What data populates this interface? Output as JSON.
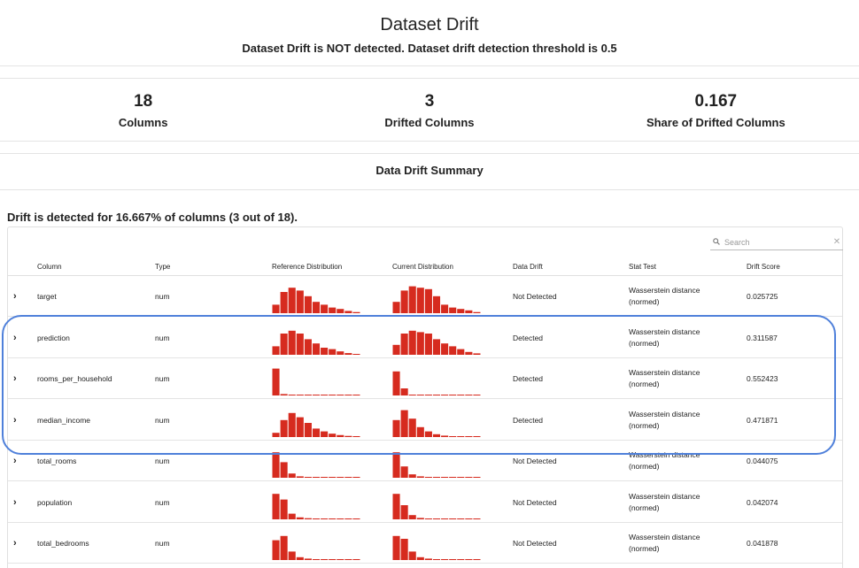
{
  "title": {
    "heading": "Dataset Drift",
    "subtitle": "Dataset Drift is NOT detected. Dataset drift detection threshold is 0.5"
  },
  "counters": [
    {
      "value": "18",
      "label": "Columns"
    },
    {
      "value": "3",
      "label": "Drifted Columns"
    },
    {
      "value": "0.167",
      "label": "Share of Drifted Columns"
    }
  ],
  "summary": {
    "heading": "Data Drift Summary"
  },
  "drift_text": "Drift is detected for 16.667% of columns (3 out of 18).",
  "search": {
    "placeholder": "Search",
    "icon": "search-icon"
  },
  "table": {
    "headers": [
      "Column",
      "Type",
      "Reference Distribution",
      "Current Distribution",
      "Data Drift",
      "Stat Test",
      "Drift Score"
    ],
    "bar_color": "#d62b1f",
    "rows": [
      {
        "column": "target",
        "type": "num",
        "drift": "Not Detected",
        "stat_line1": "Wasserstein distance",
        "stat_line2": "(normed)",
        "score": "0.025725",
        "ref": [
          0.3,
          0.75,
          0.9,
          0.8,
          0.6,
          0.4,
          0.3,
          0.2,
          0.15,
          0.08,
          0.04
        ],
        "cur": [
          0.4,
          0.8,
          0.95,
          0.9,
          0.85,
          0.6,
          0.3,
          0.2,
          0.15,
          0.1,
          0.04
        ]
      },
      {
        "column": "prediction",
        "type": "num",
        "drift": "Detected",
        "stat_line1": "Wasserstein distance",
        "stat_line2": "(normed)",
        "score": "0.311587",
        "ref": [
          0.3,
          0.75,
          0.85,
          0.75,
          0.55,
          0.4,
          0.25,
          0.2,
          0.12,
          0.06,
          0.03
        ],
        "cur": [
          0.35,
          0.75,
          0.85,
          0.8,
          0.75,
          0.55,
          0.4,
          0.3,
          0.2,
          0.1,
          0.05
        ]
      },
      {
        "column": "rooms_per_household",
        "type": "num",
        "drift": "Detected",
        "stat_line1": "Wasserstein distance",
        "stat_line2": "(normed)",
        "score": "0.552423",
        "ref": [
          0.95,
          0.05,
          0.02,
          0.01,
          0.01,
          0.01,
          0.01,
          0.01,
          0.01,
          0.01,
          0.01
        ],
        "cur": [
          0.85,
          0.25,
          0.03,
          0.01,
          0.01,
          0.01,
          0.01,
          0.01,
          0.01,
          0.01,
          0.01
        ]
      },
      {
        "column": "median_income",
        "type": "num",
        "drift": "Detected",
        "stat_line1": "Wasserstein distance",
        "stat_line2": "(normed)",
        "score": "0.471871",
        "ref": [
          0.15,
          0.6,
          0.85,
          0.7,
          0.5,
          0.3,
          0.2,
          0.12,
          0.07,
          0.04,
          0.03
        ],
        "cur": [
          0.6,
          0.95,
          0.65,
          0.35,
          0.2,
          0.1,
          0.05,
          0.03,
          0.02,
          0.01,
          0.01
        ]
      },
      {
        "column": "total_rooms",
        "type": "num",
        "drift": "Not Detected",
        "stat_line1": "Wasserstein distance",
        "stat_line2": "(normed)",
        "score": "0.044075",
        "ref": [
          0.9,
          0.55,
          0.15,
          0.05,
          0.03,
          0.02,
          0.02,
          0.01,
          0.01,
          0.01,
          0.01
        ],
        "cur": [
          0.9,
          0.4,
          0.12,
          0.05,
          0.03,
          0.02,
          0.01,
          0.01,
          0.01,
          0.01,
          0.01
        ]
      },
      {
        "column": "population",
        "type": "num",
        "drift": "Not Detected",
        "stat_line1": "Wasserstein distance",
        "stat_line2": "(normed)",
        "score": "0.042074",
        "ref": [
          0.9,
          0.7,
          0.2,
          0.07,
          0.04,
          0.03,
          0.02,
          0.01,
          0.01,
          0.01,
          0.01
        ],
        "cur": [
          0.9,
          0.5,
          0.15,
          0.05,
          0.03,
          0.02,
          0.01,
          0.01,
          0.01,
          0.01,
          0.01
        ]
      },
      {
        "column": "total_bedrooms",
        "type": "num",
        "drift": "Not Detected",
        "stat_line1": "Wasserstein distance",
        "stat_line2": "(normed)",
        "score": "0.041878",
        "ref": [
          0.7,
          0.85,
          0.3,
          0.1,
          0.05,
          0.03,
          0.02,
          0.01,
          0.01,
          0.01,
          0.01
        ],
        "cur": [
          0.85,
          0.75,
          0.3,
          0.1,
          0.05,
          0.03,
          0.02,
          0.01,
          0.01,
          0.01,
          0.01
        ]
      }
    ]
  }
}
